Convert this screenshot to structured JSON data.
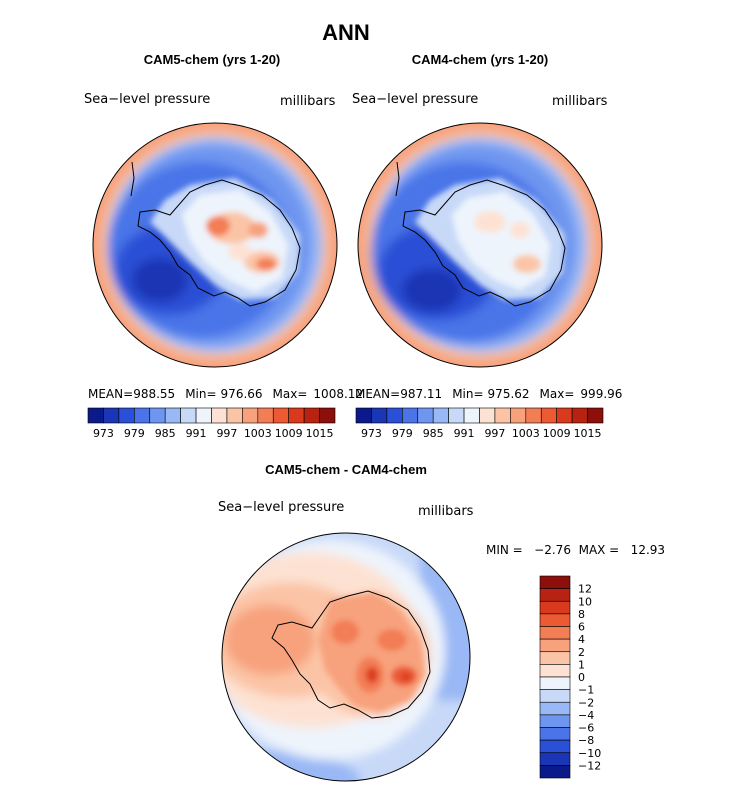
{
  "figure_title": "ANN",
  "panels": [
    {
      "title": "CAM5-chem (yrs 1-20)",
      "variable": "Sea−level pressure",
      "units": "millibars",
      "stats": {
        "mean_label": "MEAN=",
        "mean": "988.55",
        "min_label": "Min=",
        "min": "976.66",
        "max_label": "Max=",
        "max": "1008.12"
      }
    },
    {
      "title": "CAM4-chem (yrs 1-20)",
      "variable": "Sea−level pressure",
      "units": "millibars",
      "stats": {
        "mean_label": "MEAN=",
        "mean": "987.11",
        "min_label": "Min=",
        "min": "975.62",
        "max_label": "Max=",
        "max": "999.96"
      }
    }
  ],
  "diff_panel": {
    "title": "CAM5-chem - CAM4-chem",
    "variable": "Sea−level pressure",
    "units": "millibars",
    "stats_text": "MIN =   −2.76  MAX =   12.93"
  },
  "colorbars": {
    "field": {
      "colors": [
        "#0a1a8a",
        "#1a35b5",
        "#2950d6",
        "#4a74e8",
        "#6e96f0",
        "#9ab8f5",
        "#c8d9f8",
        "#eef4fc",
        "#fde2d3",
        "#fbc4a6",
        "#f7a27d",
        "#f37d55",
        "#ec5a34",
        "#d93a1d",
        "#b82212",
        "#8c0f0b"
      ],
      "tick_labels": [
        "973",
        "979",
        "985",
        "991",
        "997",
        "1003",
        "1009",
        "1015"
      ]
    },
    "diff": {
      "colors": [
        "#8c0f0b",
        "#b82212",
        "#d93a1d",
        "#ec5a34",
        "#f37d55",
        "#f7a27d",
        "#fbc4a6",
        "#fde2d3",
        "#eef4fc",
        "#c8d9f8",
        "#9ab8f5",
        "#6e96f0",
        "#4a74e8",
        "#2950d6",
        "#1a35b5",
        "#0a1a8a"
      ],
      "tick_labels": [
        "12",
        "10",
        "8",
        "6",
        "4",
        "2",
        "1",
        "0",
        "−1",
        "−2",
        "−4",
        "−6",
        "−8",
        "−10",
        "−12"
      ]
    }
  },
  "chart_data": [
    {
      "type": "heatmap",
      "projection": "south-polar-stereographic",
      "title": "CAM5-chem (yrs 1-20)",
      "variable": "Sea-level pressure",
      "units": "millibars",
      "mean": 988.55,
      "min": 976.66,
      "max": 1008.12,
      "contour_levels": [
        973,
        976,
        979,
        982,
        985,
        988,
        991,
        994,
        997,
        1000,
        1003,
        1006,
        1009,
        1012,
        1015
      ]
    },
    {
      "type": "heatmap",
      "projection": "south-polar-stereographic",
      "title": "CAM4-chem (yrs 1-20)",
      "variable": "Sea-level pressure",
      "units": "millibars",
      "mean": 987.11,
      "min": 975.62,
      "max": 999.96,
      "contour_levels": [
        973,
        976,
        979,
        982,
        985,
        988,
        991,
        994,
        997,
        1000,
        1003,
        1006,
        1009,
        1012,
        1015
      ]
    },
    {
      "type": "heatmap",
      "projection": "south-polar-stereographic",
      "title": "CAM5-chem - CAM4-chem",
      "variable": "Sea-level pressure",
      "units": "millibars",
      "min": -2.76,
      "max": 12.93,
      "contour_levels": [
        -12,
        -10,
        -8,
        -6,
        -4,
        -2,
        -1,
        0,
        1,
        2,
        4,
        6,
        8,
        10,
        12
      ]
    }
  ]
}
